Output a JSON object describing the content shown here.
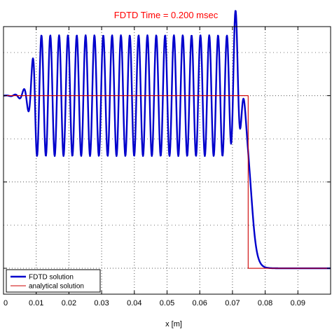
{
  "chart_data": {
    "type": "line",
    "title": "FDTD Time = 0.200 msec",
    "xlabel": "x [m]",
    "ylabel": "",
    "xlim": [
      0,
      0.1
    ],
    "ylim": [
      -0.15,
      1.4
    ],
    "x_ticks": [
      0,
      0.01,
      0.02,
      0.03,
      0.04,
      0.05,
      0.06,
      0.07,
      0.08,
      0.09
    ],
    "x_tick_labels": [
      "0",
      "0.01",
      "0.02",
      "0.03",
      "0.04",
      "0.05",
      "0.06",
      "0.07",
      "0.08",
      "0.09"
    ],
    "grid": "dotted",
    "legend_position": "bottom-left",
    "series": [
      {
        "name": "FDTD solution",
        "color": "#0000cc",
        "style": "solid-thick",
        "model": {
          "baseline": 1.0,
          "front_x": 0.0755,
          "front_width": 0.0016,
          "wave_period": 0.0027,
          "envelope_start": 0.0,
          "envelope_growth": 32,
          "envelope_scale": 0.0007,
          "peak_x": 0.0708,
          "peak_y": 1.25,
          "x_end": 0.1
        }
      },
      {
        "name": "analytical solution",
        "color": "#cc0000",
        "style": "solid-thin",
        "points": [
          [
            0,
            1.0
          ],
          [
            0.0748,
            1.0
          ],
          [
            0.0748,
            0.0
          ],
          [
            0.1,
            0.0
          ]
        ]
      }
    ]
  }
}
